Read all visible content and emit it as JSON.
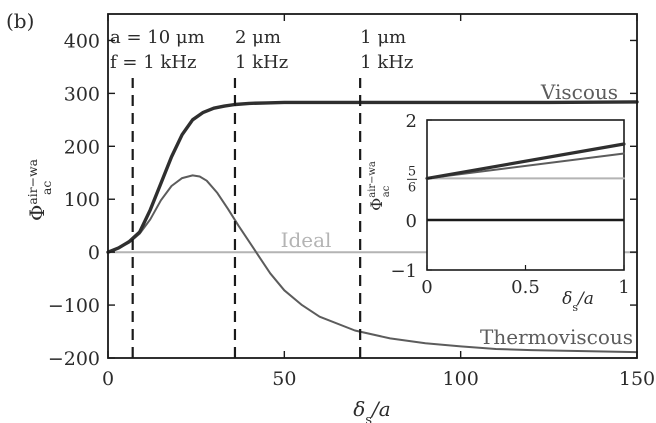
{
  "panel_label": "(b)",
  "colors": {
    "viscous": "#2f2f2f",
    "thermoviscous": "#5c5c5c",
    "ideal": "#b4b4b4",
    "axis": "#1a1a1a"
  },
  "chart_data": [
    {
      "type": "line",
      "xlabel": "δs/a",
      "ylabel": "Φac^air−wa",
      "xlim": [
        0,
        150
      ],
      "ylim": [
        -200,
        450
      ],
      "x_ticks": [
        0,
        50,
        100,
        150
      ],
      "y_ticks": [
        -200,
        -100,
        0,
        100,
        200,
        300,
        400
      ],
      "grid": false,
      "vlines": [
        {
          "x": 7,
          "annotation": [
            "a = 10 μm",
            "f = 1 kHz"
          ]
        },
        {
          "x": 36,
          "annotation": [
            "2 μm",
            "1 kHz"
          ]
        },
        {
          "x": 71.5,
          "annotation": [
            "1 μm",
            "1 kHz"
          ]
        }
      ],
      "series": [
        {
          "name": "Viscous",
          "x": [
            0,
            3,
            6,
            9,
            12,
            15,
            18,
            21,
            24,
            27,
            30,
            33,
            36,
            40,
            45,
            50,
            60,
            75,
            100,
            125,
            150
          ],
          "y": [
            0,
            8,
            20,
            38,
            80,
            130,
            180,
            222,
            250,
            264,
            272,
            276,
            279,
            281,
            282,
            283,
            283,
            283,
            283,
            283,
            284
          ]
        },
        {
          "name": "Thermoviscous",
          "x": [
            0,
            3,
            6,
            9,
            12,
            15,
            18,
            21,
            24,
            26,
            28,
            31,
            34,
            37,
            40,
            43,
            46,
            50,
            55,
            60,
            70,
            80,
            90,
            100,
            110,
            120,
            135,
            150
          ],
          "y": [
            0,
            8,
            18,
            35,
            62,
            98,
            125,
            140,
            145,
            143,
            135,
            112,
            82,
            50,
            20,
            -10,
            -40,
            -72,
            -100,
            -122,
            -148,
            -163,
            -172,
            -178,
            -183,
            -185,
            -187,
            -189
          ]
        },
        {
          "name": "Ideal",
          "x": [
            0,
            150
          ],
          "y": [
            0,
            0
          ]
        }
      ]
    },
    {
      "type": "line",
      "xlabel": "δs/a",
      "ylabel": "Φac^air−wa",
      "xlim": [
        0,
        1
      ],
      "ylim": [
        -1,
        2
      ],
      "x_ticks": [
        0,
        0.5,
        1
      ],
      "y_ticks": [
        -1,
        0,
        2
      ],
      "y_tick_fraction": {
        "value": 0.8333,
        "numerator": "5",
        "denominator": "6"
      },
      "hline": {
        "y": 0
      },
      "series": [
        {
          "name": "Viscous",
          "x": [
            0,
            1
          ],
          "y": [
            0.833,
            1.52
          ]
        },
        {
          "name": "Thermoviscous",
          "x": [
            0,
            1
          ],
          "y": [
            0.833,
            1.33
          ]
        },
        {
          "name": "Ideal",
          "x": [
            0,
            1
          ],
          "y": [
            0.833,
            0.833
          ]
        }
      ]
    }
  ]
}
